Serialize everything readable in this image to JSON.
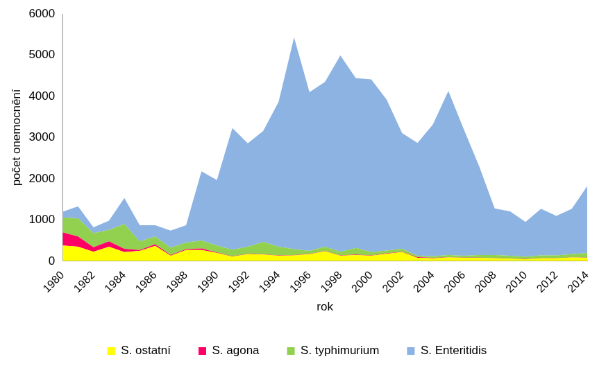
{
  "chart_data": {
    "type": "area",
    "stacked": true,
    "grid": false,
    "legend": "bottom",
    "x_label": "rok",
    "y_label": "počet onemocnění",
    "categories": [
      "1980",
      null,
      "1982",
      null,
      "1984",
      null,
      "1986",
      null,
      "1988",
      null,
      "1990",
      null,
      "1992",
      null,
      "1994",
      null,
      "1996",
      null,
      "1998",
      null,
      "2000",
      null,
      "2002",
      null,
      "2004",
      null,
      "2006",
      null,
      "2008",
      null,
      "2010",
      null,
      "2012",
      null,
      "2014"
    ],
    "ylim": [
      0,
      6000
    ],
    "yticks": [
      0,
      1000,
      2000,
      3000,
      4000,
      5000,
      6000
    ],
    "series": [
      {
        "name": "S. ostatní",
        "color": "#ffff00",
        "values": [
          380,
          350,
          230,
          350,
          220,
          250,
          370,
          130,
          270,
          270,
          200,
          110,
          170,
          160,
          130,
          140,
          170,
          240,
          130,
          150,
          130,
          180,
          220,
          80,
          70,
          90,
          80,
          80,
          70,
          60,
          50,
          70,
          70,
          90,
          80
        ]
      },
      {
        "name": "S. agona",
        "color": "#ff0066",
        "values": [
          320,
          250,
          110,
          130,
          80,
          20,
          40,
          20,
          20,
          40,
          10,
          10,
          10,
          10,
          10,
          10,
          10,
          10,
          10,
          10,
          10,
          10,
          10,
          20,
          10,
          5,
          5,
          5,
          5,
          5,
          5,
          5,
          5,
          5,
          5
        ]
      },
      {
        "name": "S. typhimurium",
        "color": "#92d050",
        "values": [
          360,
          440,
          340,
          280,
          600,
          210,
          190,
          180,
          160,
          190,
          170,
          160,
          170,
          300,
          210,
          140,
          70,
          100,
          90,
          160,
          80,
          70,
          70,
          30,
          40,
          55,
          45,
          65,
          75,
          65,
          55,
          65,
          65,
          75,
          115
        ]
      },
      {
        "name": "S. Enteritidis",
        "color": "#8db3e2",
        "values": [
          140,
          290,
          140,
          220,
          630,
          390,
          270,
          410,
          420,
          1680,
          1590,
          2950,
          2510,
          2690,
          3520,
          5140,
          3850,
          4000,
          4760,
          4120,
          4190,
          3660,
          2810,
          2740,
          3200,
          3980,
          3070,
          2150,
          1130,
          1080,
          840,
          1130,
          960,
          1100,
          1620
        ]
      }
    ]
  }
}
